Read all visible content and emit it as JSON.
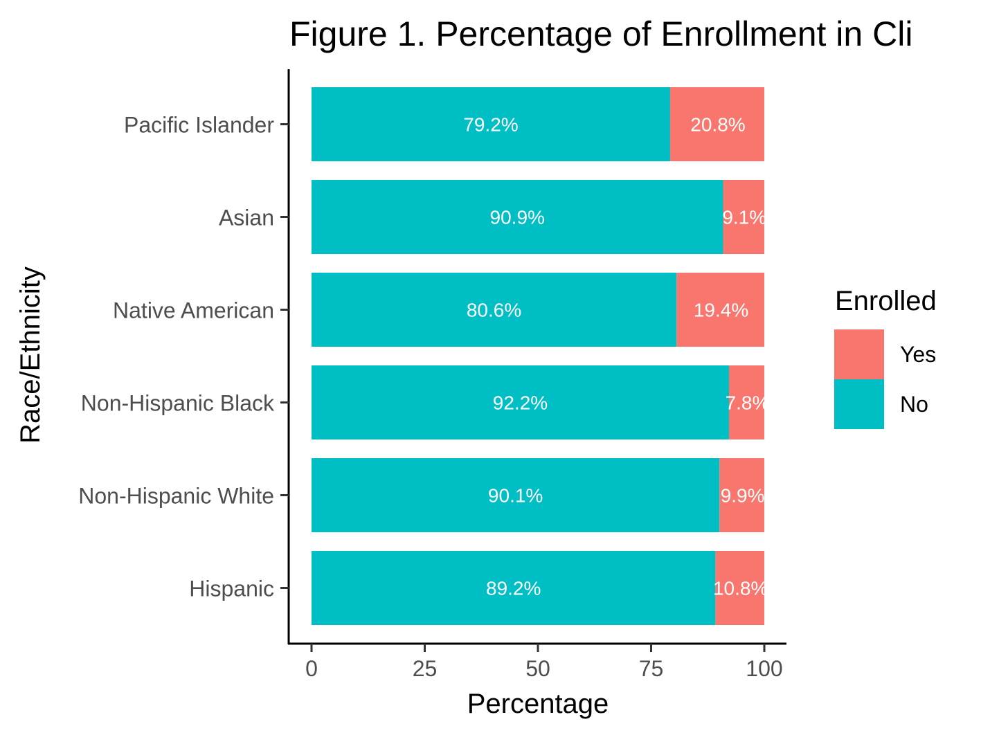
{
  "chart_data": {
    "type": "bar",
    "orientation": "horizontal",
    "stacked": true,
    "title": "Figure 1. Percentage of Enrollment in Cli",
    "xlabel": "Percentage",
    "ylabel": "Race/Ethnicity",
    "xlim": [
      0,
      100
    ],
    "xticks": [
      "0",
      "25",
      "50",
      "75",
      "100"
    ],
    "categories": [
      "Pacific Islander",
      "Asian",
      "Native American",
      "Non-Hispanic Black",
      "Non-Hispanic White",
      "Hispanic"
    ],
    "series": [
      {
        "name": "No",
        "color": "#00BFC4",
        "values": [
          79.2,
          90.9,
          80.6,
          92.2,
          90.1,
          89.2
        ],
        "labels": [
          "79.2%",
          "90.9%",
          "80.6%",
          "92.2%",
          "90.1%",
          "89.2%"
        ]
      },
      {
        "name": "Yes",
        "color": "#F8766D",
        "values": [
          20.8,
          9.1,
          19.4,
          7.8,
          9.9,
          10.8
        ],
        "labels": [
          "20.8%",
          "9.1%",
          "19.4%",
          "7.8%",
          "9.9%",
          "10.8%"
        ]
      }
    ],
    "legend": {
      "title": "Enrolled",
      "placement": "right",
      "entries": [
        "Yes",
        "No"
      ]
    },
    "grid": false
  }
}
